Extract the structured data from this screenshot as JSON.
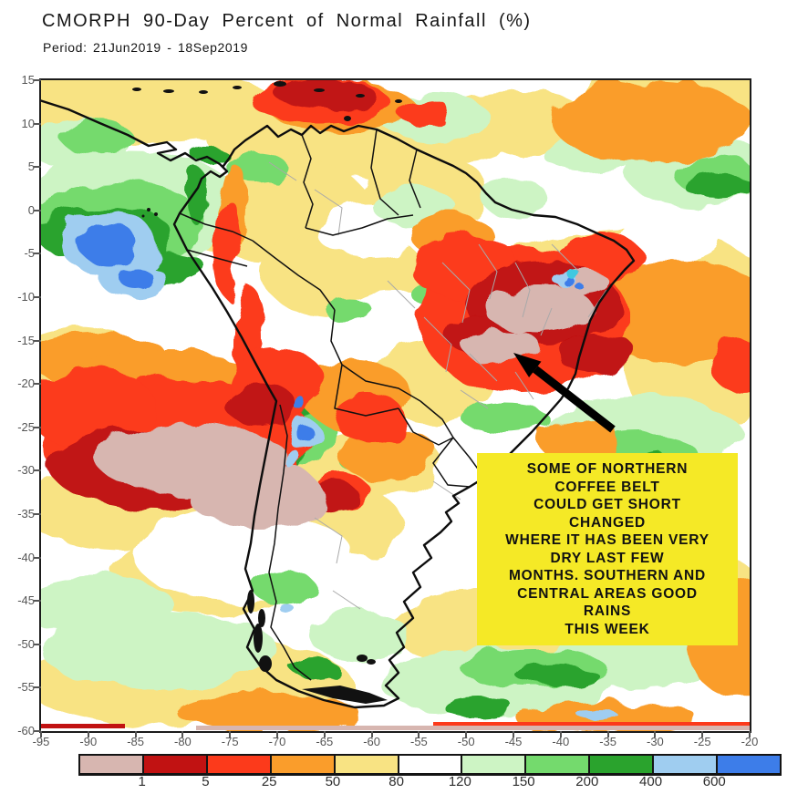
{
  "title": "CMORPH 90-Day Percent of Normal Rainfall (%)",
  "subtitle": "Period: 21Jun2019 - 18Sep2019",
  "axes": {
    "lat_ticks": [
      "15",
      "10",
      "5",
      "0",
      "-5",
      "-10",
      "-15",
      "-20",
      "-25",
      "-30",
      "-35",
      "-40",
      "-45",
      "-50",
      "-55",
      "-60"
    ],
    "lon_ticks": [
      "-95",
      "-90",
      "-85",
      "-80",
      "-75",
      "-70",
      "-65",
      "-60",
      "-55",
      "-50",
      "-45",
      "-40",
      "-35",
      "-30",
      "-25",
      "-20"
    ]
  },
  "colorbar": {
    "colors": [
      "#d7b6b0",
      "#c11212",
      "#fc3a1b",
      "#fa9d2b",
      "#f8e383",
      "#ffffff",
      "#cdf4c4",
      "#74da6d",
      "#2aa32d",
      "#9fcdf0",
      "#3d7de9"
    ],
    "labels": [
      "1",
      "5",
      "25",
      "50",
      "80",
      "120",
      "150",
      "200",
      "400",
      "600"
    ]
  },
  "annotation": {
    "background": "#f5e926",
    "lines": [
      "SOME OF NORTHERN",
      "COFFEE BELT",
      "COULD GET SHORT",
      "CHANGED",
      "WHERE IT HAS BEEN VERY",
      "DRY LAST FEW",
      "MONTHS. SOUTHERN AND",
      "CENTRAL AREAS GOOD",
      "RAINS",
      "THIS WEEK"
    ]
  }
}
